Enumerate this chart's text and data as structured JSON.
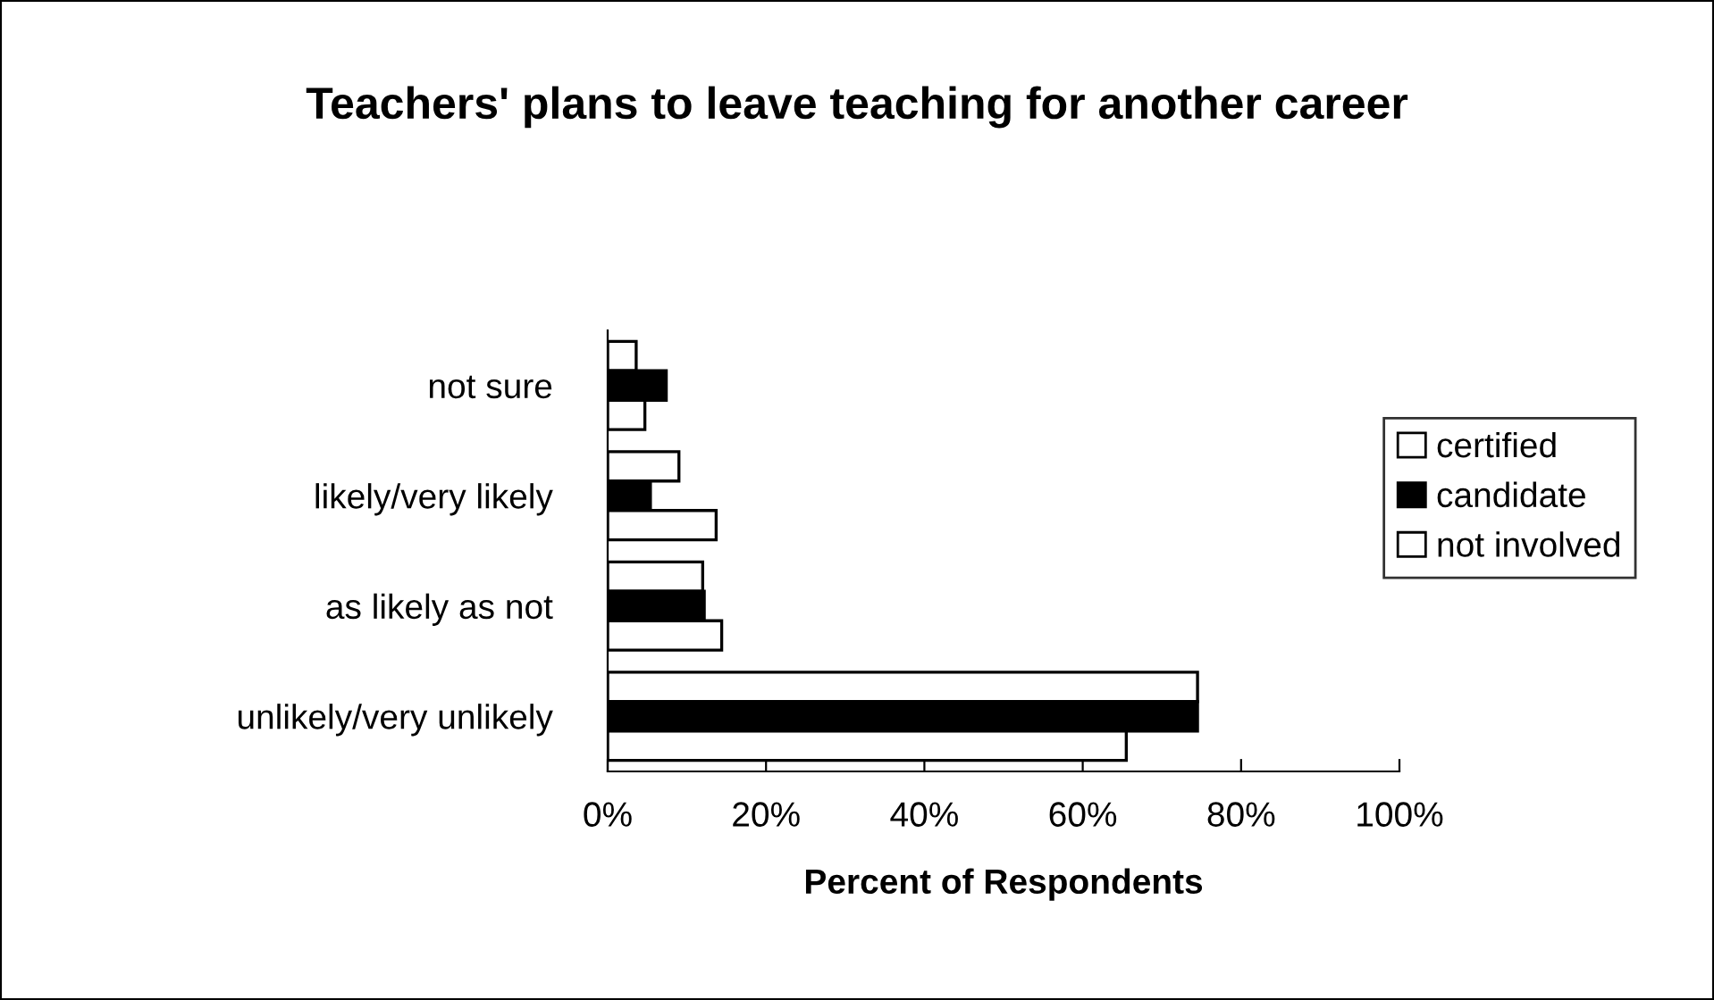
{
  "chart_data": {
    "type": "bar",
    "orientation": "horizontal",
    "title": "Teachers' plans to leave teaching for another career",
    "xlabel": "Percent of Respondents",
    "categories": [
      "not sure",
      "likely/very likely",
      "as likely as not",
      "unlikely/very unlikely"
    ],
    "series": [
      {
        "name": "certified",
        "color": "#ffffff",
        "values": [
          3.6,
          9.0,
          12.0,
          74.5
        ]
      },
      {
        "name": "candidate",
        "color": "#000000",
        "values": [
          7.4,
          5.4,
          12.2,
          74.5
        ]
      },
      {
        "name": "not involved",
        "color": "#ffffff",
        "values": [
          4.7,
          13.7,
          14.4,
          65.5
        ]
      }
    ],
    "xlim": [
      0,
      100
    ],
    "xticks": [
      {
        "value": 0,
        "label": "0%"
      },
      {
        "value": 20,
        "label": "20%"
      },
      {
        "value": 40,
        "label": "40%"
      },
      {
        "value": 60,
        "label": "60%"
      },
      {
        "value": 80,
        "label": "80%"
      },
      {
        "value": 100,
        "label": "100%"
      }
    ],
    "grid": false,
    "legend": "right"
  }
}
